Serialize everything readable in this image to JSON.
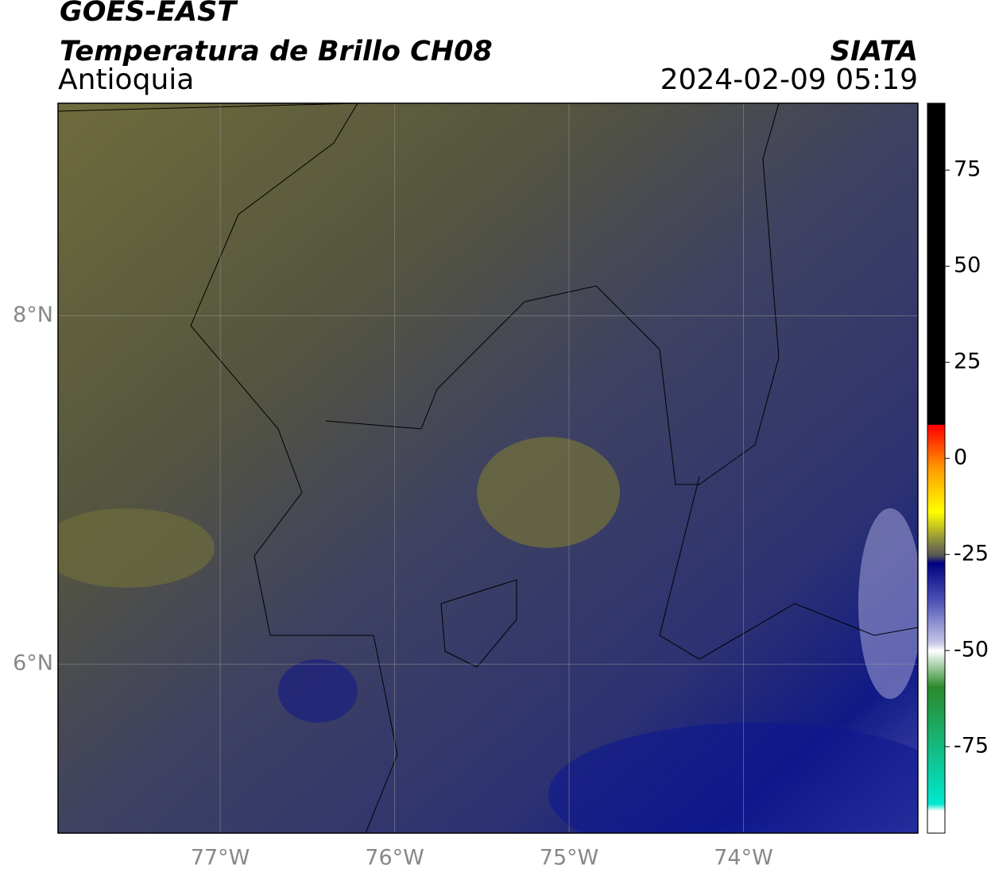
{
  "chart_data": {
    "type": "map",
    "title": "GOES-EAST",
    "subtitle": "Temperatura de Brillo CH08",
    "region": "Antioquia",
    "source": "SIATA",
    "timestamp": "2024-02-09 05:19",
    "xlim": [
      -77.93,
      -73.0
    ],
    "ylim": [
      5.03,
      9.22
    ],
    "xticks": [
      {
        "value": -77,
        "label": "77°W"
      },
      {
        "value": -76,
        "label": "76°W"
      },
      {
        "value": -75,
        "label": "75°W"
      },
      {
        "value": -74,
        "label": "74°W"
      }
    ],
    "yticks": [
      {
        "value": 6,
        "label": "6°N"
      },
      {
        "value": 8,
        "label": "8°N"
      }
    ],
    "grid": true,
    "colorbar": {
      "lim": [
        -97.5,
        92.4
      ],
      "ticks": [
        75,
        50,
        25,
        0,
        -25,
        -50,
        -75
      ]
    }
  }
}
